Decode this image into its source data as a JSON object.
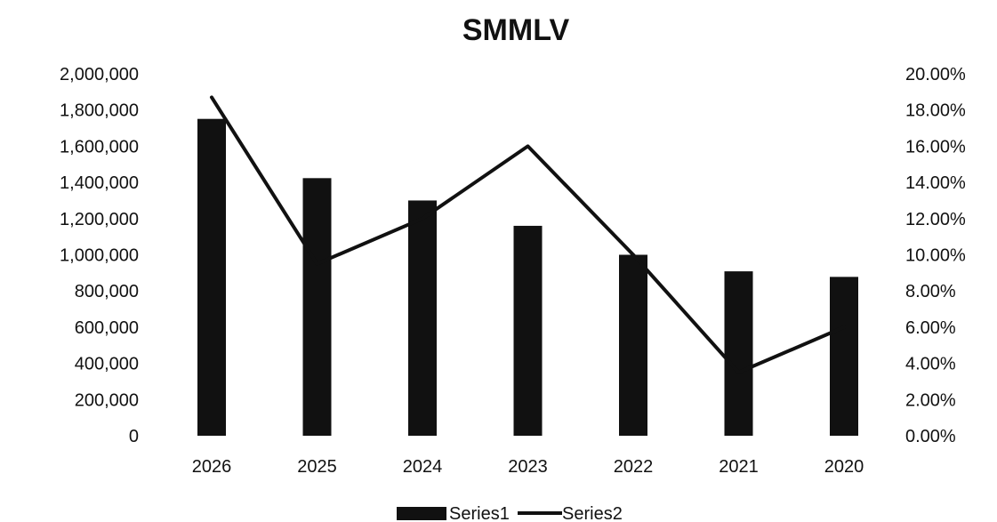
{
  "chart_data": {
    "type": "bar",
    "title": "SMMLV",
    "categories": [
      "2026",
      "2025",
      "2024",
      "2023",
      "2022",
      "2021",
      "2020"
    ],
    "series": [
      {
        "name": "Series1",
        "type": "bar",
        "axis": "left",
        "values": [
          1750905,
          1423500,
          1300000,
          1160000,
          1000000,
          908526,
          877803
        ],
        "color": "#111111"
      },
      {
        "name": "Series2",
        "type": "line",
        "axis": "right",
        "values": [
          0.187,
          0.095,
          0.12,
          0.16,
          0.1,
          0.035,
          0.06
        ],
        "color": "#111111"
      }
    ],
    "y_left": {
      "min": 0,
      "max": 2000000,
      "step": 200000,
      "tick_labels": [
        "0",
        "200,000",
        "400,000",
        "600,000",
        "800,000",
        "1,000,000",
        "1,200,000",
        "1,400,000",
        "1,600,000",
        "1,800,000",
        "2,000,000"
      ]
    },
    "y_right": {
      "min": 0,
      "max": 0.2,
      "step": 0.02,
      "tick_labels": [
        "0.00%",
        "2.00%",
        "4.00%",
        "6.00%",
        "8.00%",
        "10.00%",
        "12.00%",
        "14.00%",
        "16.00%",
        "18.00%",
        "20.00%"
      ]
    },
    "xlabel": "",
    "ylabel": "",
    "grid": false,
    "legend": {
      "position": "bottom",
      "items": [
        "Series1",
        "Series2"
      ]
    }
  }
}
